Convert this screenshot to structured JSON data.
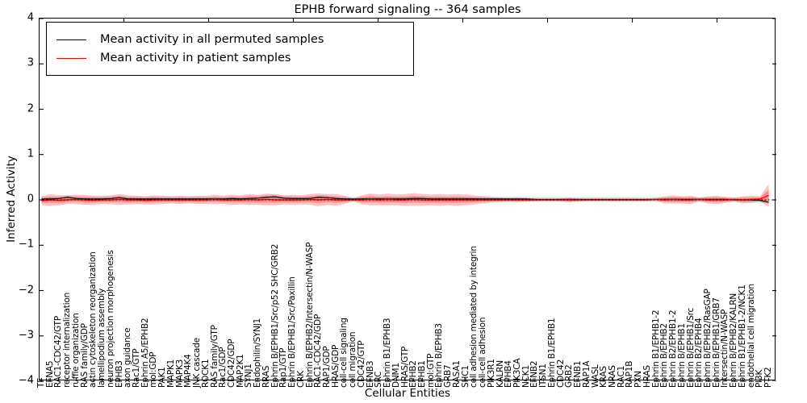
{
  "figure": {
    "title": "EPHB forward signaling -- 364 samples",
    "xlabel": "Cellular Entities",
    "ylabel": "Inferred Activity"
  },
  "legend": {
    "items": [
      {
        "label": "Mean activity in all permuted samples",
        "color": "#000000"
      },
      {
        "label": "Mean activity in patient samples",
        "color": "#ff0000"
      }
    ]
  },
  "axes": {
    "y_ticks": [
      {
        "label": "4",
        "value": 4
      },
      {
        "label": "3",
        "value": 3
      },
      {
        "label": "2",
        "value": 2
      },
      {
        "label": "1",
        "value": 1
      },
      {
        "label": "0",
        "value": 0
      },
      {
        "label": "−1",
        "value": -1
      },
      {
        "label": "−2",
        "value": -2
      },
      {
        "label": "−3",
        "value": -3
      },
      {
        "label": "−4",
        "value": -4
      }
    ],
    "ylim": [
      -4,
      4
    ],
    "x_tick_label_rotation": 90
  },
  "colors": {
    "permuted_line": "#000000",
    "patient_line": "#ff0000",
    "patient_band": "#ff0000",
    "permuted_band": "#999999",
    "zero_line": "#000000"
  },
  "chart_data": {
    "type": "line",
    "title": "EPHB forward signaling -- 364 samples",
    "xlabel": "Cellular Entities",
    "ylabel": "Inferred Activity",
    "ylim": [
      -4,
      4
    ],
    "grid": false,
    "legend_position": "upper left",
    "categories": [
      "TF",
      "EFNA5",
      "RAC1-CDC42/GTP",
      "receptor internalization",
      "ruffle organization",
      "RAS family/GDP",
      "actin cytoskeleton reorganization",
      "lamellipodium assembly",
      "neuron projection morphogenesis",
      "EPHB3",
      "axon guidance",
      "Rac1/GTP",
      "Ephrin A5/EPHB2",
      "mol:GDP",
      "PAK1",
      "MAPK1",
      "MAPK3",
      "MAP4K4",
      "JNK cascade",
      "ROCK1",
      "RAS family/GTP",
      "Rac1/GDP",
      "CDC42/GDP",
      "MAP2K1",
      "SYNJ1",
      "Endophilin/SYNJ1",
      "RRAS",
      "Ephrin B/EPHB1/Src/p52 SHC/GRB2",
      "Rap1/GTP",
      "Ephrin B/EPHB1/Src/Paxillin",
      "CRK",
      "Ephrin B/EPHB2/Intersectin/N-WASP",
      "RAC1-CDC42/GDP",
      "RAP1/GDP",
      "HRAS/GDP",
      "cell-cell signaling",
      "cell migration",
      "CDC42/GTP",
      "EFNB3",
      "SRC",
      "Ephrin B1/EPHB3",
      "DNM1",
      "HRAS/GTP",
      "EPHB2",
      "EPHB1",
      "mol:GTP",
      "Ephrin B/EPHB3",
      "GRB7",
      "RASA1",
      "SHC1",
      "cell adhesion mediated by integrin",
      "cell-cell adhesion",
      "PIK3R1",
      "KALRN",
      "EPHB4",
      "PIK3CA",
      "NCK1",
      "EFNB2",
      "ITSN1",
      "Ephrin B1/EPHB1",
      "CDC42",
      "GRB2",
      "EFNB1",
      "RAP1A",
      "WASL",
      "KRAS",
      "NRAS",
      "RAC1",
      "RAP1B",
      "PXN",
      "HRAS",
      "Ephrin B1/EPHB1-2",
      "Ephrin B/EPHB2",
      "Ephrin B2/EPHB1-2",
      "Ephrin B/EPHB1",
      "Ephrin B/EPHB1/Src",
      "Ephrin B2/EPHB4",
      "Ephrin B/EPHB2/RasGAP",
      "Ephrin B/EPHB1/GRB7",
      "Intersectin/N-WASP",
      "Ephrin B/EPHB2/KALRN",
      "Ephrin B1/EPHB1-2/NCK1",
      "endothelial cell migration",
      "PI3K",
      "PTK2"
    ],
    "series": [
      {
        "name": "Mean activity in all permuted samples",
        "color": "#000000",
        "values": [
          0.02,
          0.02,
          0.03,
          0.06,
          0.03,
          0.02,
          0.02,
          0.02,
          0.03,
          0.05,
          0.02,
          0.02,
          0.02,
          0.02,
          0.02,
          0.02,
          0.02,
          0.02,
          0.02,
          0.02,
          0.02,
          0.02,
          0.03,
          0.02,
          0.03,
          0.04,
          0.06,
          0.07,
          0.04,
          0.03,
          0.03,
          0.03,
          0.06,
          0.05,
          0.03,
          0.02,
          0.02,
          0.02,
          0.02,
          0.02,
          0.02,
          0.02,
          0.02,
          0.03,
          0.03,
          0.02,
          0.02,
          0.02,
          0.02,
          0.02,
          0.02,
          0.02,
          0.02,
          0.02,
          0.02,
          0.02,
          0.02,
          0.01,
          0.01,
          0.01,
          0.01,
          0.01,
          0.01,
          0.01,
          0.01,
          0.01,
          0.01,
          0.01,
          0.01,
          0.01,
          0.01,
          0.01,
          0.01,
          0.01,
          0.01,
          0.01,
          0.01,
          0.01,
          0.01,
          0.01,
          0.0,
          0.0,
          0.0,
          -0.01,
          -0.05
        ]
      },
      {
        "name": "Mean activity in patient samples",
        "color": "#ff0000",
        "values": [
          -0.02,
          0.0,
          -0.01,
          0.0,
          0.01,
          0.0,
          -0.01,
          0.0,
          0.0,
          0.01,
          0.0,
          0.0,
          -0.01,
          0.0,
          0.0,
          0.0,
          0.0,
          0.0,
          0.0,
          0.0,
          0.01,
          0.0,
          0.0,
          0.0,
          0.01,
          0.0,
          0.01,
          0.0,
          0.0,
          0.0,
          0.0,
          0.01,
          0.0,
          0.01,
          0.0,
          0.0,
          0.0,
          0.0,
          0.01,
          0.0,
          0.01,
          0.0,
          0.0,
          0.01,
          0.0,
          0.0,
          0.0,
          0.0,
          0.0,
          0.0,
          0.0,
          0.0,
          0.0,
          0.0,
          0.0,
          0.0,
          0.0,
          0.0,
          0.0,
          0.0,
          0.0,
          0.0,
          0.0,
          0.0,
          0.0,
          0.0,
          0.0,
          0.0,
          0.0,
          0.0,
          0.0,
          0.01,
          0.0,
          0.01,
          0.0,
          0.0,
          0.01,
          0.0,
          0.0,
          0.0,
          0.01,
          0.0,
          0.01,
          0.02,
          0.1
        ]
      }
    ],
    "bands": [
      {
        "name": "patient sample spread",
        "color": "#ff0000",
        "center": "Mean activity in patient samples",
        "halfwidths": [
          0.1,
          0.13,
          0.11,
          0.09,
          0.1,
          0.11,
          0.1,
          0.09,
          0.1,
          0.12,
          0.1,
          0.09,
          0.09,
          0.1,
          0.09,
          0.08,
          0.09,
          0.08,
          0.09,
          0.09,
          0.1,
          0.09,
          0.11,
          0.1,
          0.12,
          0.11,
          0.13,
          0.12,
          0.1,
          0.11,
          0.1,
          0.12,
          0.14,
          0.12,
          0.13,
          0.09,
          0.03,
          0.1,
          0.13,
          0.12,
          0.13,
          0.12,
          0.13,
          0.14,
          0.13,
          0.12,
          0.13,
          0.12,
          0.13,
          0.12,
          0.1,
          0.08,
          0.06,
          0.05,
          0.04,
          0.05,
          0.04,
          0.03,
          0.02,
          0.02,
          0.03,
          0.05,
          0.03,
          0.02,
          0.02,
          0.02,
          0.02,
          0.02,
          0.02,
          0.02,
          0.02,
          0.03,
          0.08,
          0.09,
          0.08,
          0.09,
          0.04,
          0.08,
          0.09,
          0.07,
          0.04,
          0.08,
          0.08,
          0.06,
          0.25
        ]
      },
      {
        "name": "permuted sample spread",
        "color": "#999999",
        "center": "Mean activity in all permuted samples",
        "halfwidth": 0.05
      }
    ],
    "zero_line": {
      "y": 0,
      "style": "dotted",
      "color": "#000000"
    }
  }
}
